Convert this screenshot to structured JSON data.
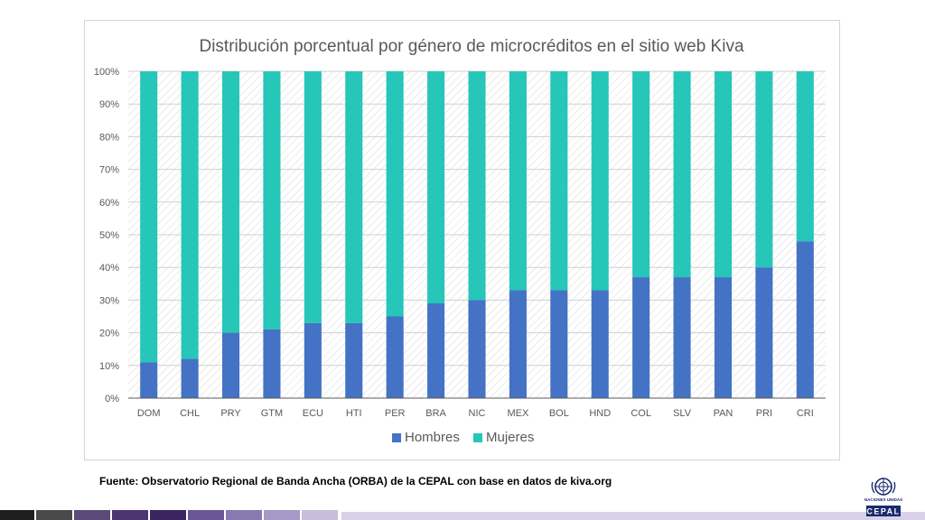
{
  "chart_data": {
    "type": "bar",
    "stacked": true,
    "title": "Distribución porcentual por género de microcréditos en el sitio web Kiva",
    "xlabel": "",
    "ylabel": "",
    "ylim": [
      0,
      100
    ],
    "yticks": [
      "0%",
      "10%",
      "20%",
      "30%",
      "40%",
      "50%",
      "60%",
      "70%",
      "80%",
      "90%",
      "100%"
    ],
    "categories": [
      "DOM",
      "CHL",
      "PRY",
      "GTM",
      "ECU",
      "HTI",
      "PER",
      "BRA",
      "NIC",
      "MEX",
      "BOL",
      "HND",
      "COL",
      "SLV",
      "PAN",
      "PRI",
      "CRI"
    ],
    "series": [
      {
        "name": "Hombres",
        "color": "#4472c4",
        "values": [
          11,
          12,
          20,
          21,
          23,
          23,
          25,
          29,
          30,
          33,
          33,
          33,
          37,
          37,
          37,
          40,
          48
        ]
      },
      {
        "name": "Mujeres",
        "color": "#26c6b9",
        "values": [
          89,
          88,
          80,
          79,
          77,
          77,
          75,
          71,
          70,
          67,
          67,
          67,
          63,
          63,
          63,
          60,
          52
        ]
      }
    ],
    "legend_position": "bottom",
    "grid": true
  },
  "source_note": "Fuente: Observatorio Regional de Banda Ancha (ORBA) de la CEPAL con base en datos de kiva.org",
  "logo": {
    "org_name": "NACIONES UNIDAS",
    "acronym": "CEPAL"
  },
  "footer_colors": [
    "#1f1f1f",
    "#4a4a4a",
    "#5c4a7a",
    "#4b3470",
    "#3a2560",
    "#6a5596",
    "#8a78b0",
    "#a898c8",
    "#c8bedc"
  ]
}
